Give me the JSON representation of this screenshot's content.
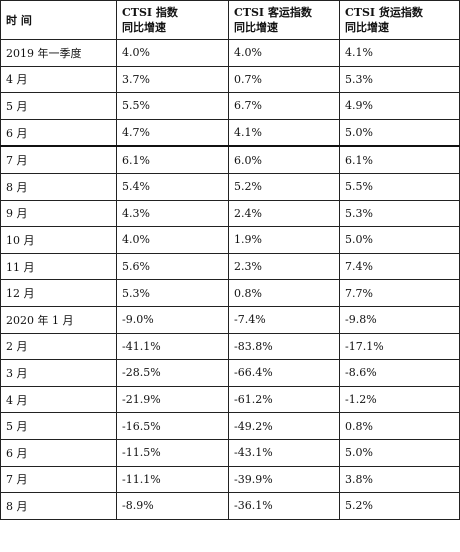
{
  "table": {
    "headers": [
      {
        "line1": "时  间",
        "line2": ""
      },
      {
        "line1": "CTSI 指数",
        "line2": "同比增速"
      },
      {
        "line1": "CTSI 客运指数",
        "line2": "同比增速"
      },
      {
        "line1": "CTSI 货运指数",
        "line2": "同比增速"
      }
    ],
    "rows": [
      [
        "2019 年一季度",
        "4.0%",
        "4.0%",
        "4.1%"
      ],
      [
        "4 月",
        "3.7%",
        "0.7%",
        "5.3%"
      ],
      [
        "5 月",
        "5.5%",
        "6.7%",
        "4.9%"
      ],
      [
        "6 月",
        "4.7%",
        "4.1%",
        "5.0%"
      ],
      [
        "7 月",
        "6.1%",
        "6.0%",
        "6.1%"
      ],
      [
        "8 月",
        "5.4%",
        "5.2%",
        "5.5%"
      ],
      [
        "9 月",
        "4.3%",
        "2.4%",
        "5.3%"
      ],
      [
        "10 月",
        "4.0%",
        "1.9%",
        "5.0%"
      ],
      [
        "11 月",
        "5.6%",
        "2.3%",
        "7.4%"
      ],
      [
        "12 月",
        "5.3%",
        "0.8%",
        "7.7%"
      ],
      [
        "2020 年 1 月",
        "-9.0%",
        "-7.4%",
        "-9.8%"
      ],
      [
        "2 月",
        "-41.1%",
        "-83.8%",
        "-17.1%"
      ],
      [
        "3 月",
        "-28.5%",
        "-66.4%",
        "-8.6%"
      ],
      [
        "4 月",
        "-21.9%",
        "-61.2%",
        "-1.2%"
      ],
      [
        "5 月",
        "-16.5%",
        "-49.2%",
        "0.8%"
      ],
      [
        "6 月",
        "-11.5%",
        "-43.1%",
        "5.0%"
      ],
      [
        "7 月",
        "-11.1%",
        "-39.9%",
        "3.8%"
      ],
      [
        "8 月",
        "-8.9%",
        "-36.1%",
        "5.2%"
      ]
    ]
  }
}
